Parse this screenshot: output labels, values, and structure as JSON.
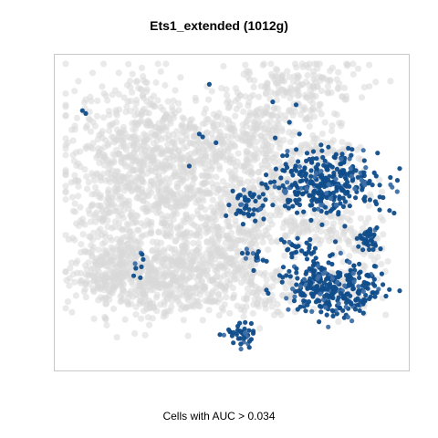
{
  "chart_data": {
    "type": "scatter",
    "title": "Ets1_extended (1012g)",
    "caption": "Cells with AUC > 0.034",
    "xlabel": "",
    "ylabel": "",
    "grid": false,
    "axes_visible": false,
    "colors": {
      "background_cells": "#d9d9d9",
      "highlighted_cells": "#0f4c8a",
      "highlighted_light": "#3d6fa8",
      "panel_border": "#c8c8c8"
    },
    "series": [
      {
        "name": "",
        "color": "#d9d9d9",
        "clusters": [
          {
            "cx": 0.12,
            "cy": 0.72,
            "sx": 0.05,
            "sy": 0.06,
            "n": 160
          },
          {
            "cx": 0.25,
            "cy": 0.74,
            "sx": 0.09,
            "sy": 0.07,
            "n": 320
          },
          {
            "cx": 0.42,
            "cy": 0.72,
            "sx": 0.08,
            "sy": 0.07,
            "n": 260
          },
          {
            "cx": 0.16,
            "cy": 0.45,
            "sx": 0.09,
            "sy": 0.12,
            "n": 360
          },
          {
            "cx": 0.34,
            "cy": 0.48,
            "sx": 0.08,
            "sy": 0.1,
            "n": 280
          },
          {
            "cx": 0.22,
            "cy": 0.22,
            "sx": 0.1,
            "sy": 0.09,
            "n": 280
          },
          {
            "cx": 0.42,
            "cy": 0.28,
            "sx": 0.09,
            "sy": 0.07,
            "n": 220
          },
          {
            "cx": 0.5,
            "cy": 0.55,
            "sx": 0.06,
            "sy": 0.09,
            "n": 180
          },
          {
            "cx": 0.6,
            "cy": 0.42,
            "sx": 0.06,
            "sy": 0.06,
            "n": 130
          },
          {
            "cx": 0.6,
            "cy": 0.18,
            "sx": 0.07,
            "sy": 0.08,
            "n": 180
          },
          {
            "cx": 0.72,
            "cy": 0.08,
            "sx": 0.08,
            "sy": 0.05,
            "n": 130
          },
          {
            "cx": 0.78,
            "cy": 0.33,
            "sx": 0.07,
            "sy": 0.07,
            "n": 140
          },
          {
            "cx": 0.74,
            "cy": 0.56,
            "sx": 0.08,
            "sy": 0.05,
            "n": 130
          },
          {
            "cx": 0.82,
            "cy": 0.78,
            "sx": 0.06,
            "sy": 0.04,
            "n": 70
          },
          {
            "cx": 0.6,
            "cy": 0.78,
            "sx": 0.06,
            "sy": 0.05,
            "n": 90
          },
          {
            "cx": 0.88,
            "cy": 0.62,
            "sx": 0.04,
            "sy": 0.04,
            "n": 50
          }
        ]
      },
      {
        "name": "",
        "color": "#0f4c8a",
        "clusters": [
          {
            "cx": 0.8,
            "cy": 0.77,
            "sx": 0.07,
            "sy": 0.045,
            "n": 300
          },
          {
            "cx": 0.79,
            "cy": 0.41,
            "sx": 0.08,
            "sy": 0.055,
            "n": 320
          },
          {
            "cx": 0.55,
            "cy": 0.48,
            "sx": 0.025,
            "sy": 0.03,
            "n": 45
          },
          {
            "cx": 0.91,
            "cy": 0.6,
            "sx": 0.02,
            "sy": 0.02,
            "n": 35
          },
          {
            "cx": 0.52,
            "cy": 0.93,
            "sx": 0.025,
            "sy": 0.02,
            "n": 40
          },
          {
            "cx": 0.7,
            "cy": 0.63,
            "sx": 0.03,
            "sy": 0.02,
            "n": 25
          },
          {
            "cx": 0.74,
            "cy": 0.71,
            "sx": 0.01,
            "sy": 0.015,
            "n": 12
          },
          {
            "cx": 0.56,
            "cy": 0.66,
            "sx": 0.015,
            "sy": 0.02,
            "n": 14
          },
          {
            "cx": 0.22,
            "cy": 0.69,
            "sx": 0.015,
            "sy": 0.02,
            "n": 8
          }
        ],
        "points": [
          {
            "x": 0.05,
            "y": 0.16
          },
          {
            "x": 0.06,
            "y": 0.17
          },
          {
            "x": 0.43,
            "y": 0.07
          },
          {
            "x": 0.6,
            "y": 0.38
          },
          {
            "x": 0.4,
            "y": 0.24
          },
          {
            "x": 0.41,
            "y": 0.25
          },
          {
            "x": 0.37,
            "y": 0.35
          },
          {
            "x": 0.48,
            "y": 0.52
          },
          {
            "x": 0.69,
            "y": 0.14
          },
          {
            "x": 0.67,
            "y": 0.2
          },
          {
            "x": 0.7,
            "y": 0.24
          },
          {
            "x": 0.62,
            "y": 0.13
          },
          {
            "x": 0.45,
            "y": 0.27
          },
          {
            "x": 0.94,
            "y": 0.5
          }
        ]
      }
    ]
  }
}
